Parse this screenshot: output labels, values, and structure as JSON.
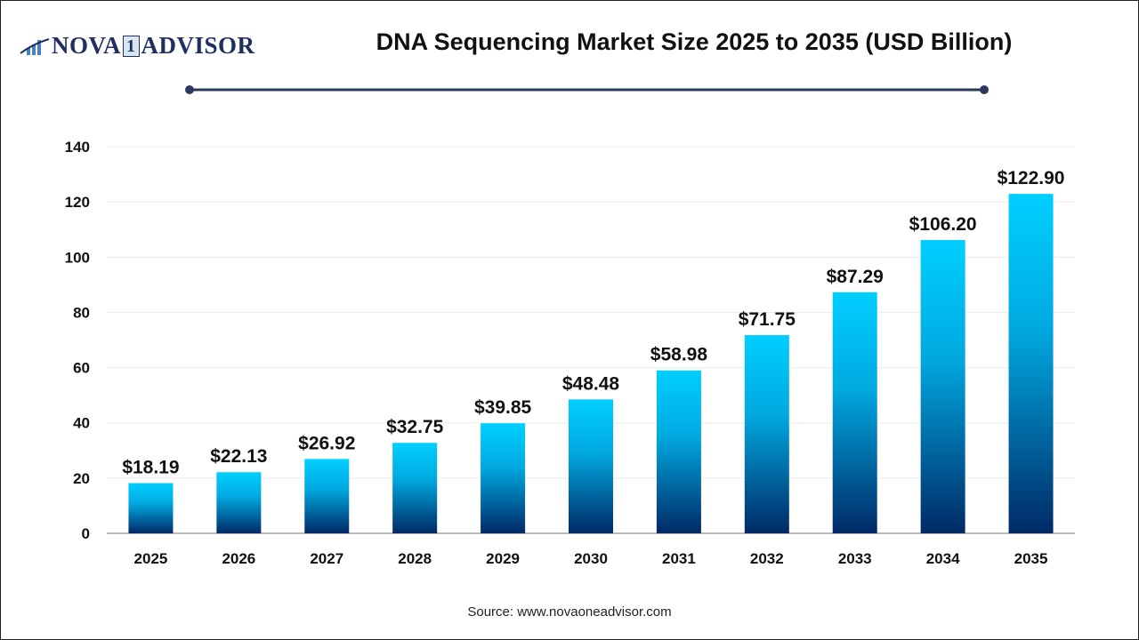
{
  "logo": {
    "text_left": "NOVA",
    "text_digit": "1",
    "text_right": "ADVISOR"
  },
  "source": "Source: www.novaoneadvisor.com",
  "colors": {
    "bar_top": "#00cfff",
    "bar_bottom": "#002a66",
    "title_line": "#2b3a5c"
  },
  "chart_data": {
    "type": "bar",
    "title": "DNA Sequencing Market Size 2025 to 2035 (USD Billion)",
    "categories": [
      "2025",
      "2026",
      "2027",
      "2028",
      "2029",
      "2030",
      "2031",
      "2032",
      "2033",
      "2034",
      "2035"
    ],
    "values": [
      18.19,
      22.13,
      26.92,
      32.75,
      39.85,
      48.48,
      58.98,
      71.75,
      87.29,
      106.2,
      122.9
    ],
    "data_labels": [
      "$18.19",
      "$22.13",
      "$26.92",
      "$32.75",
      "$39.85",
      "$48.48",
      "$58.98",
      "$71.75",
      "$87.29",
      "$106.20",
      "$122.90"
    ],
    "yticks": [
      0,
      20,
      40,
      60,
      80,
      100,
      120,
      140
    ],
    "ylim": [
      0,
      140
    ],
    "xlabel": "",
    "ylabel": "",
    "grid": true,
    "legend": "none"
  }
}
